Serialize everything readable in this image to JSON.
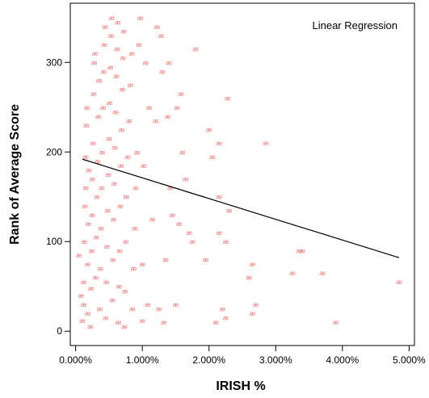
{
  "chart_data": {
    "type": "scatter",
    "title": "",
    "annotation": "Linear Regression",
    "xlabel": "IRISH %",
    "ylabel": "Rank of Average Score",
    "xlim": [
      -0.08,
      5.08
    ],
    "ylim": [
      -16,
      366
    ],
    "x_ticks": [
      0,
      1,
      2,
      3,
      4,
      5
    ],
    "x_tick_labels": [
      "0.000%",
      "1.000%",
      "2.000%",
      "3.000%",
      "4.000%",
      "5.000%"
    ],
    "y_ticks": [
      0,
      100,
      200,
      300
    ],
    "y_tick_labels": [
      "0",
      "100",
      "200",
      "300"
    ],
    "point_marker": "æ",
    "point_color": "#e87878",
    "line_color": "#000000",
    "regression_line": {
      "x": [
        0.1,
        4.85
      ],
      "y": [
        192,
        82
      ]
    },
    "points": [
      [
        0.05,
        85
      ],
      [
        0.08,
        40
      ],
      [
        0.1,
        12
      ],
      [
        0.12,
        30
      ],
      [
        0.12,
        55
      ],
      [
        0.13,
        100
      ],
      [
        0.14,
        140
      ],
      [
        0.15,
        160
      ],
      [
        0.15,
        195
      ],
      [
        0.16,
        230
      ],
      [
        0.17,
        250
      ],
      [
        0.18,
        20
      ],
      [
        0.18,
        75
      ],
      [
        0.19,
        120
      ],
      [
        0.2,
        180
      ],
      [
        0.22,
        5
      ],
      [
        0.23,
        48
      ],
      [
        0.24,
        90
      ],
      [
        0.25,
        130
      ],
      [
        0.25,
        170
      ],
      [
        0.26,
        210
      ],
      [
        0.27,
        265
      ],
      [
        0.28,
        300
      ],
      [
        0.29,
        310
      ],
      [
        0.3,
        60
      ],
      [
        0.31,
        105
      ],
      [
        0.32,
        150
      ],
      [
        0.33,
        190
      ],
      [
        0.34,
        240
      ],
      [
        0.35,
        280
      ],
      [
        0.36,
        25
      ],
      [
        0.37,
        70
      ],
      [
        0.38,
        115
      ],
      [
        0.39,
        160
      ],
      [
        0.4,
        200
      ],
      [
        0.41,
        250
      ],
      [
        0.42,
        290
      ],
      [
        0.43,
        320
      ],
      [
        0.44,
        340
      ],
      [
        0.45,
        15
      ],
      [
        0.46,
        55
      ],
      [
        0.47,
        95
      ],
      [
        0.48,
        135
      ],
      [
        0.49,
        175
      ],
      [
        0.5,
        215
      ],
      [
        0.51,
        255
      ],
      [
        0.52,
        295
      ],
      [
        0.53,
        330
      ],
      [
        0.54,
        350
      ],
      [
        0.55,
        35
      ],
      [
        0.56,
        80
      ],
      [
        0.57,
        125
      ],
      [
        0.58,
        165
      ],
      [
        0.59,
        205
      ],
      [
        0.6,
        245
      ],
      [
        0.61,
        285
      ],
      [
        0.62,
        315
      ],
      [
        0.63,
        345
      ],
      [
        0.64,
        10
      ],
      [
        0.65,
        50
      ],
      [
        0.66,
        90
      ],
      [
        0.67,
        140
      ],
      [
        0.68,
        185
      ],
      [
        0.69,
        225
      ],
      [
        0.7,
        270
      ],
      [
        0.71,
        305
      ],
      [
        0.72,
        335
      ],
      [
        0.73,
        5
      ],
      [
        0.74,
        45
      ],
      [
        0.75,
        100
      ],
      [
        0.76,
        150
      ],
      [
        0.78,
        195
      ],
      [
        0.8,
        235
      ],
      [
        0.82,
        275
      ],
      [
        0.84,
        310
      ],
      [
        0.85,
        25
      ],
      [
        0.87,
        70
      ],
      [
        0.89,
        115
      ],
      [
        0.9,
        160
      ],
      [
        0.92,
        200
      ],
      [
        0.95,
        320
      ],
      [
        0.97,
        350
      ],
      [
        1.0,
        12
      ],
      [
        1.0,
        75
      ],
      [
        1.02,
        185
      ],
      [
        1.05,
        300
      ],
      [
        1.08,
        30
      ],
      [
        1.1,
        250
      ],
      [
        1.15,
        125
      ],
      [
        1.2,
        235
      ],
      [
        1.22,
        340
      ],
      [
        1.25,
        25
      ],
      [
        1.28,
        330
      ],
      [
        1.3,
        290
      ],
      [
        1.32,
        10
      ],
      [
        1.35,
        80
      ],
      [
        1.38,
        240
      ],
      [
        1.4,
        300
      ],
      [
        1.42,
        160
      ],
      [
        1.45,
        130
      ],
      [
        1.5,
        30
      ],
      [
        1.52,
        250
      ],
      [
        1.55,
        120
      ],
      [
        1.58,
        265
      ],
      [
        1.6,
        200
      ],
      [
        1.65,
        170
      ],
      [
        1.7,
        110
      ],
      [
        1.75,
        100
      ],
      [
        1.8,
        315
      ],
      [
        1.95,
        80
      ],
      [
        2.0,
        225
      ],
      [
        2.05,
        195
      ],
      [
        2.1,
        10
      ],
      [
        2.15,
        110
      ],
      [
        2.15,
        150
      ],
      [
        2.15,
        210
      ],
      [
        2.2,
        25
      ],
      [
        2.25,
        15
      ],
      [
        2.25,
        100
      ],
      [
        2.28,
        260
      ],
      [
        2.3,
        135
      ],
      [
        2.6,
        60
      ],
      [
        2.65,
        75
      ],
      [
        2.65,
        20
      ],
      [
        2.7,
        30
      ],
      [
        2.85,
        210
      ],
      [
        3.25,
        65
      ],
      [
        3.35,
        90
      ],
      [
        3.4,
        90
      ],
      [
        3.7,
        65
      ],
      [
        3.9,
        10
      ],
      [
        4.85,
        55
      ]
    ]
  }
}
